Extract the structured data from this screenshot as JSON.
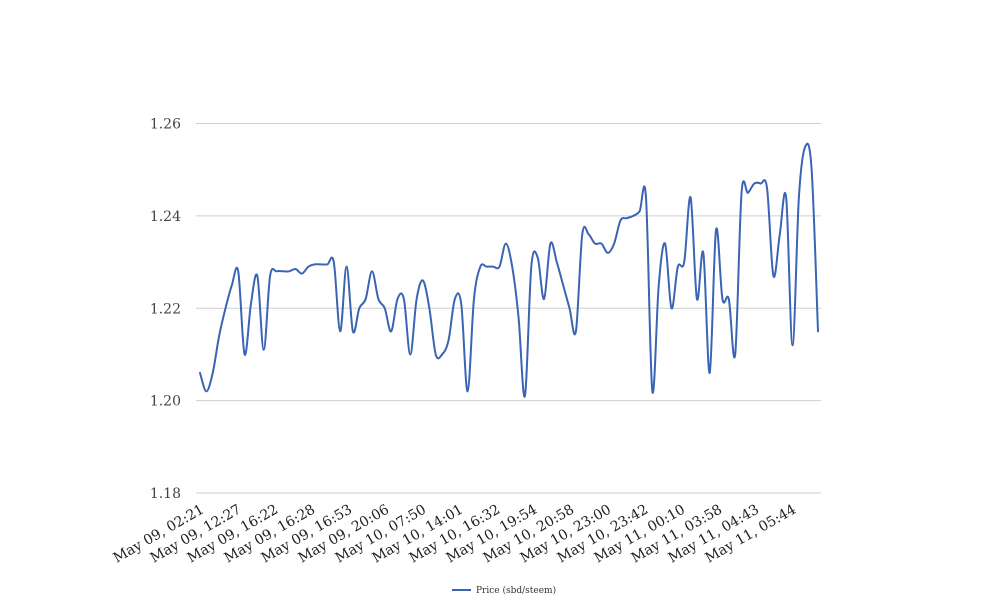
{
  "chart_data": {
    "type": "line",
    "title": "",
    "xlabel": "",
    "ylabel": "",
    "ylim": [
      1.18,
      1.26
    ],
    "yticks": [
      "1.18",
      "1.20",
      "1.22",
      "1.24",
      "1.26"
    ],
    "xtick_labels": [
      "May 09, 02:21",
      "May 09, 12:27",
      "May 09, 16:22",
      "May 09, 16:28",
      "May 09, 16:53",
      "May 09, 20:06",
      "May 10, 07:50",
      "May 10, 14:01",
      "May 10, 16:32",
      "May 10, 19:54",
      "May 10, 20:58",
      "May 10, 23:00",
      "May 10, 23:42",
      "May 11, 00:10",
      "May 11, 03:58",
      "May 11, 04:43",
      "May 11, 05:44"
    ],
    "grid": true,
    "legend_position": "bottom",
    "series": [
      {
        "name": "Price (sbd/steem)",
        "color": "#3a64b4",
        "values": [
          1.206,
          1.202,
          1.206,
          1.214,
          1.22,
          1.225,
          1.228,
          1.21,
          1.221,
          1.227,
          1.211,
          1.227,
          1.228,
          1.228,
          1.228,
          1.2285,
          1.2275,
          1.229,
          1.2295,
          1.2295,
          1.2295,
          1.23,
          1.215,
          1.229,
          1.215,
          1.22,
          1.222,
          1.228,
          1.222,
          1.22,
          1.215,
          1.222,
          1.222,
          1.21,
          1.222,
          1.226,
          1.22,
          1.21,
          1.21,
          1.213,
          1.222,
          1.221,
          1.202,
          1.222,
          1.229,
          1.229,
          1.229,
          1.229,
          1.234,
          1.229,
          1.218,
          1.201,
          1.229,
          1.231,
          1.222,
          1.234,
          1.23,
          1.225,
          1.22,
          1.215,
          1.236,
          1.236,
          1.234,
          1.234,
          1.232,
          1.234,
          1.239,
          1.2395,
          1.24,
          1.241,
          1.244,
          1.202,
          1.225,
          1.234,
          1.22,
          1.229,
          1.23,
          1.244,
          1.222,
          1.232,
          1.206,
          1.237,
          1.222,
          1.222,
          1.21,
          1.245,
          1.245,
          1.247,
          1.247,
          1.246,
          1.227,
          1.236,
          1.244,
          1.212,
          1.244,
          1.255,
          1.25,
          1.215
        ]
      }
    ]
  }
}
